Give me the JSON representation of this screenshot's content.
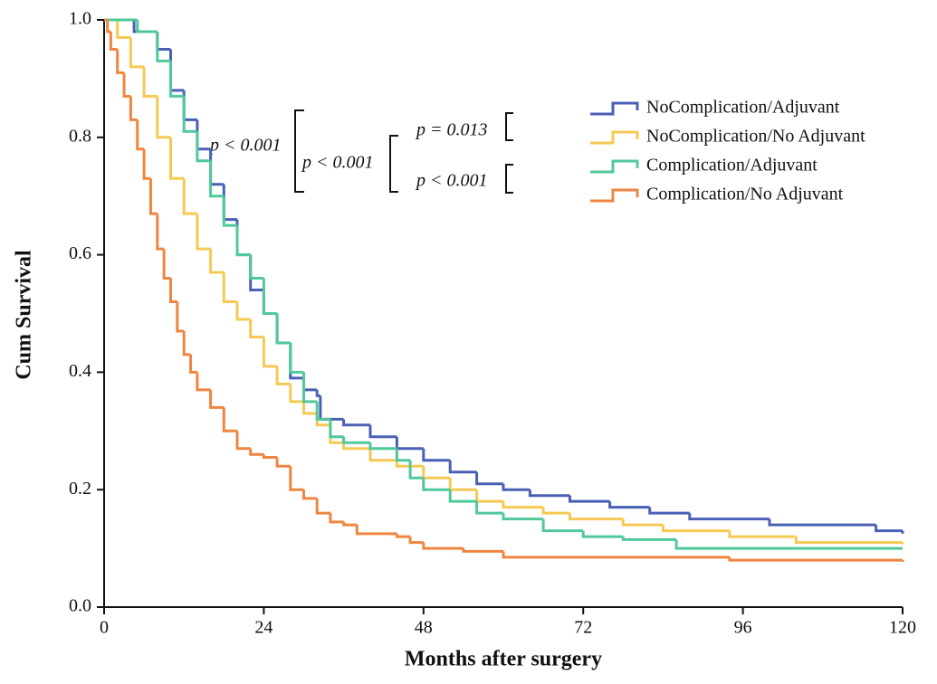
{
  "chart_data": {
    "type": "step",
    "xlabel": "Months after surgery",
    "ylabel": "Cum Survival",
    "xlim": [
      0,
      120
    ],
    "ylim": [
      0,
      1.0
    ],
    "xticks": [
      0,
      24,
      48,
      72,
      96,
      120
    ],
    "yticks": [
      {
        "value": 0,
        "label": "0.0"
      },
      0.2,
      0.4,
      0.6,
      0.8,
      {
        "value": 1,
        "label": "1.0"
      }
    ],
    "legend_position": "upper right",
    "annotations": [
      "p < 0.001",
      "p < 0.001",
      "p = 0.013",
      "p < 0.001"
    ],
    "series": [
      {
        "name": "NoComplication/Adjuvant",
        "color": "#4a60b4",
        "x": [
          0,
          4.5,
          8,
          10,
          12,
          14,
          16,
          18,
          20,
          22,
          24,
          26,
          28,
          30,
          32,
          32.5,
          36,
          40,
          44,
          48,
          52,
          56,
          60,
          64,
          70,
          76,
          82,
          88,
          100,
          116,
          120
        ],
        "values": [
          1.0,
          0.98,
          0.95,
          0.88,
          0.83,
          0.78,
          0.72,
          0.66,
          0.6,
          0.54,
          0.5,
          0.45,
          0.39,
          0.37,
          0.36,
          0.32,
          0.31,
          0.29,
          0.27,
          0.25,
          0.23,
          0.21,
          0.2,
          0.19,
          0.18,
          0.17,
          0.16,
          0.15,
          0.14,
          0.13,
          0.125
        ]
      },
      {
        "name": "NoComplication/No Adjuvant",
        "color": "#f5c954",
        "x": [
          0,
          2,
          4,
          6,
          8,
          10,
          12,
          14,
          16,
          18,
          20,
          22,
          24,
          26,
          28,
          30,
          32,
          34,
          36,
          40,
          44,
          48,
          52,
          56,
          60,
          66,
          70,
          78,
          84,
          94,
          104,
          120
        ],
        "values": [
          1.0,
          0.97,
          0.92,
          0.87,
          0.8,
          0.73,
          0.67,
          0.61,
          0.57,
          0.52,
          0.49,
          0.46,
          0.41,
          0.38,
          0.35,
          0.33,
          0.31,
          0.28,
          0.27,
          0.25,
          0.24,
          0.22,
          0.2,
          0.18,
          0.17,
          0.16,
          0.15,
          0.14,
          0.13,
          0.12,
          0.11,
          0.107
        ]
      },
      {
        "name": "Complication/Adjuvant",
        "color": "#4fc99a",
        "x": [
          0,
          5,
          8,
          10,
          12,
          14,
          16,
          18,
          20,
          22,
          24,
          26,
          28,
          30,
          32,
          34,
          36,
          40,
          44,
          46,
          48,
          52,
          56,
          60,
          66,
          72,
          78,
          86,
          120
        ],
        "values": [
          1.0,
          0.98,
          0.93,
          0.87,
          0.81,
          0.76,
          0.7,
          0.65,
          0.6,
          0.56,
          0.5,
          0.45,
          0.4,
          0.35,
          0.32,
          0.29,
          0.28,
          0.27,
          0.25,
          0.22,
          0.2,
          0.18,
          0.16,
          0.15,
          0.13,
          0.12,
          0.115,
          0.1,
          0.1
        ]
      },
      {
        "name": "Complication/No Adjuvant",
        "color": "#ef8540",
        "x": [
          0,
          0.5,
          1,
          2,
          3,
          4,
          5,
          6,
          7,
          8,
          9,
          10,
          11,
          12,
          13,
          14,
          16,
          18,
          20,
          22,
          24,
          26,
          28,
          30,
          32,
          34,
          36,
          38,
          44,
          46,
          48,
          54,
          60,
          94,
          120
        ],
        "values": [
          1.0,
          0.98,
          0.95,
          0.91,
          0.87,
          0.83,
          0.78,
          0.73,
          0.67,
          0.61,
          0.56,
          0.52,
          0.47,
          0.43,
          0.4,
          0.37,
          0.34,
          0.3,
          0.27,
          0.26,
          0.255,
          0.24,
          0.2,
          0.185,
          0.16,
          0.145,
          0.14,
          0.125,
          0.12,
          0.11,
          0.1,
          0.095,
          0.085,
          0.08,
          0.077
        ]
      }
    ]
  }
}
